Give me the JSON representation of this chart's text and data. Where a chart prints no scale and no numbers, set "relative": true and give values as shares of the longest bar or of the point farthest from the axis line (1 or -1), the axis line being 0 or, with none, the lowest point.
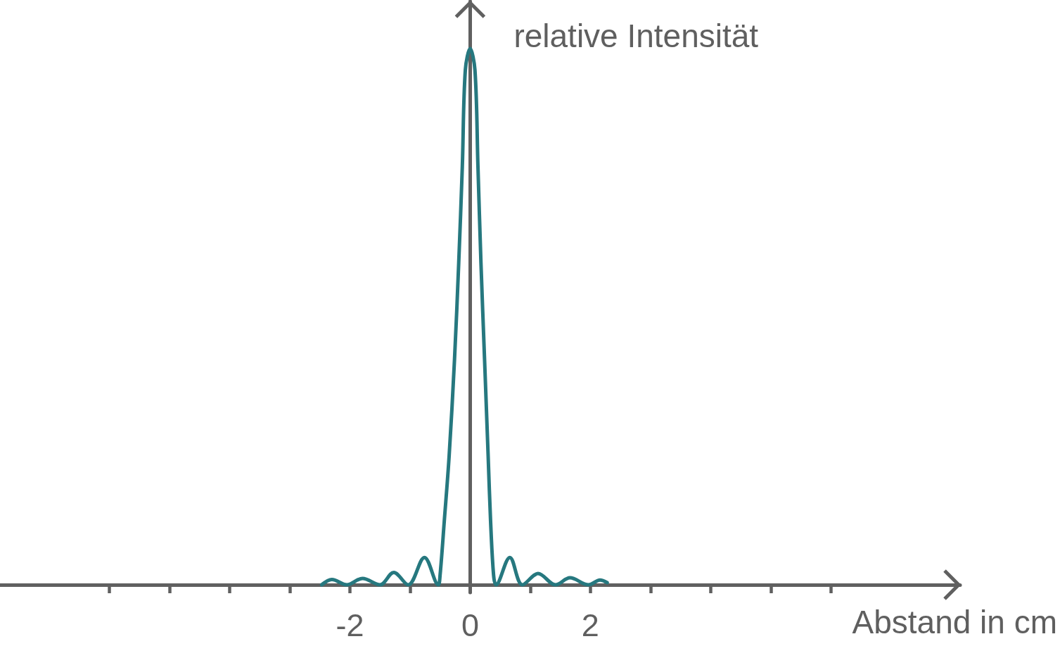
{
  "chart_data": {
    "type": "line",
    "xlabel": "Abstand in cm",
    "ylabel": "relative Intensität",
    "relative": true,
    "x": [
      -2.47,
      -2.3,
      -2.05,
      -1.79,
      -1.5,
      -1.27,
      -1.03,
      -0.76,
      -0.53,
      -0.5,
      -0.43,
      -0.35,
      -0.26,
      -0.19,
      -0.13,
      -0.08,
      0,
      0.08,
      0.13,
      0.18,
      0.24,
      0.3,
      0.34,
      0.39,
      0.43,
      0.66,
      0.87,
      1.13,
      1.42,
      1.66,
      1.97,
      2.16,
      2.28
    ],
    "series": [
      {
        "color": "#26787f",
        "values": [
          0,
          0.01,
          0,
          0.012,
          0,
          0.023,
          0,
          0.051,
          0,
          0.018,
          0.119,
          0.239,
          0.42,
          0.6,
          0.78,
          0.96,
          1,
          0.96,
          0.78,
          0.6,
          0.42,
          0.239,
          0.119,
          0.018,
          0,
          0.051,
          0,
          0.021,
          0,
          0.013,
          0,
          0.009,
          0.004
        ]
      }
    ],
    "xlim": [
      -7.82,
      8.15
    ],
    "xticks": [
      {
        "value": -6,
        "label": null
      },
      {
        "value": -5,
        "label": null
      },
      {
        "value": -4,
        "label": null
      },
      {
        "value": -3,
        "label": null
      },
      -2,
      {
        "value": -1,
        "label": null
      },
      0,
      {
        "value": 1,
        "label": null
      },
      2,
      {
        "value": 3,
        "label": null
      },
      {
        "value": 4,
        "label": null
      },
      {
        "value": 5,
        "label": null
      },
      {
        "value": 6,
        "label": null
      }
    ]
  }
}
